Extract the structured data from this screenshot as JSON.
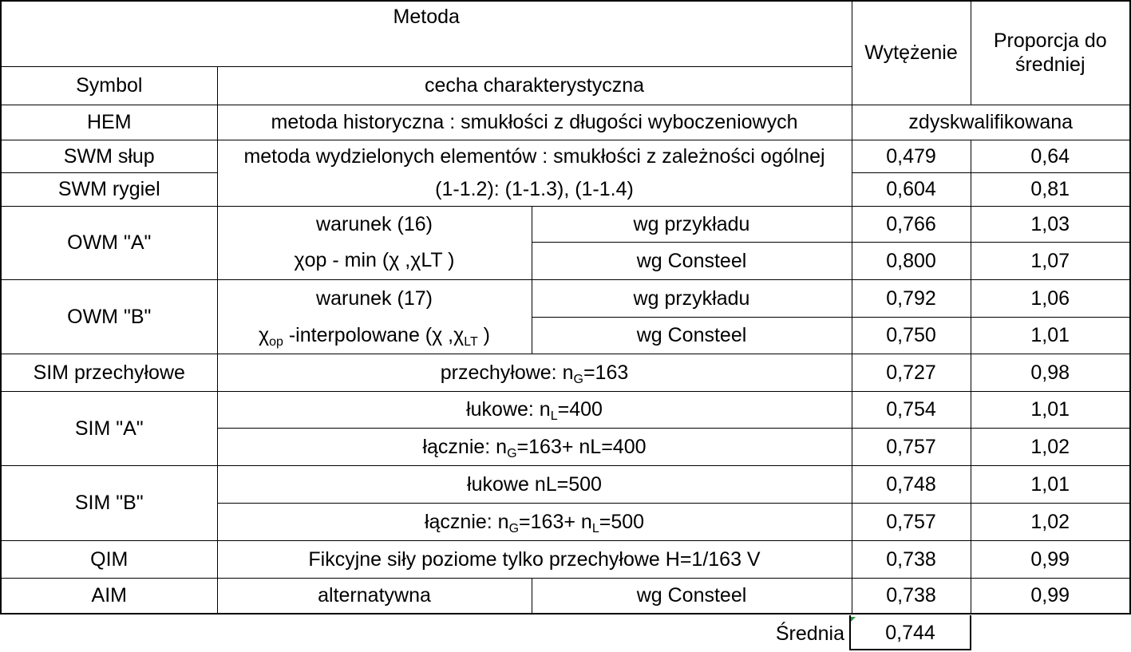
{
  "header": {
    "metoda": "Metoda",
    "wytezenie": "Wytężenie",
    "proporcja": "Proporcja do średniej",
    "symbol": "Symbol",
    "cecha": "cecha charakterystyczna"
  },
  "rows": {
    "hem": {
      "symbol": "HEM",
      "desc": "metoda historyczna : smukłości z długości wyboczeniowych",
      "result": "zdyskwalifikowana"
    },
    "swm": {
      "desc": "metoda wydzielonych elementów : smukłości z zależności ogólnej (1-1.2): (1-1.3), (1-1.4)",
      "slup": {
        "symbol": "SWM słup",
        "wytezenie": "0,479",
        "proporcja": "0,64"
      },
      "rygiel": {
        "symbol": "SWM rygiel",
        "wytezenie": "0,604",
        "proporcja": "0,81"
      }
    },
    "owm_a": {
      "symbol": "OWM \"A\"",
      "warunek": "warunek  (16)",
      "chi_main": "χop - min (χ ,χLT )",
      "r1": {
        "variant": "wg przykładu",
        "wytezenie": "0,766",
        "proporcja": "1,03"
      },
      "r2": {
        "variant": "wg Consteel",
        "wytezenie": "0,800",
        "proporcja": "1,07"
      }
    },
    "owm_b": {
      "symbol": "OWM \"B\"",
      "warunek": "warunek  (17)",
      "chi": "χ",
      "chi_sub": "op",
      "chi_rest": " -interpolowane (χ ,χ",
      "chi_lt": "LT",
      "chi_end": " )",
      "r1": {
        "variant": "wg przykładu",
        "wytezenie": "0,792",
        "proporcja": "1,06"
      },
      "r2": {
        "variant": "wg Consteel",
        "wytezenie": "0,750",
        "proporcja": "1,01"
      }
    },
    "sim_p": {
      "symbol": "SIM przechyłowe",
      "desc_pre": "przechyłowe: n",
      "desc_sub": "G",
      "desc_post": "=163",
      "wytezenie": "0,727",
      "proporcja": "0,98"
    },
    "sim_a": {
      "symbol": "SIM \"A\"",
      "r1": {
        "pre": "łukowe:  n",
        "sub": "L",
        "post": "=400",
        "wytezenie": "0,754",
        "proporcja": "1,01"
      },
      "r2": {
        "pre": "łącznie: n",
        "sub": "G",
        "post": "=163+ nL=400",
        "wytezenie": "0,757",
        "proporcja": "1,02"
      }
    },
    "sim_b": {
      "symbol": "SIM \"B\"",
      "r1": {
        "desc": "łukowe nL=500",
        "wytezenie": "0,748",
        "proporcja": "1,01"
      },
      "r2": {
        "pre": "łącznie: n",
        "sub": "G",
        "mid": "=163+ n",
        "sub2": "L",
        "post": "=500",
        "wytezenie": "0,757",
        "proporcja": "1,02"
      }
    },
    "qim": {
      "symbol": "QIM",
      "desc": "Fikcyjne siły poziome  tylko przechyłowe H=1/163 V",
      "wytezenie": "0,738",
      "proporcja": "0,99"
    },
    "aim": {
      "symbol": "AIM",
      "desc": "alternatywna",
      "variant": "wg Consteel",
      "wytezenie": "0,738",
      "proporcja": "0,99"
    }
  },
  "footer": {
    "label": "Średnia",
    "value": "0,744"
  },
  "colors": {
    "corner_marker": "#1a9b3a"
  }
}
